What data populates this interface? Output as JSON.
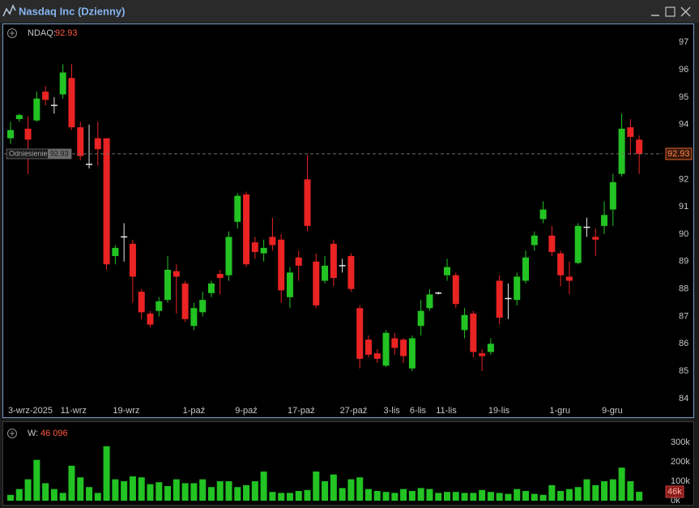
{
  "header": {
    "title": "Nasdaq Inc (Dzienny)"
  },
  "chart_data": [
    {
      "type": "candlestick",
      "legend_name": "NDAQ:",
      "categories": [
        "3-wrz-2025",
        null,
        null,
        null,
        null,
        null,
        "11-wrz",
        null,
        null,
        null,
        null,
        null,
        "19-wrz",
        null,
        null,
        null,
        null,
        null,
        null,
        null,
        "1-paź",
        null,
        null,
        null,
        null,
        null,
        "9-paź",
        null,
        null,
        null,
        null,
        null,
        "17-paź",
        null,
        null,
        null,
        null,
        null,
        "27-paź",
        null,
        null,
        null,
        null,
        "3-lis",
        null,
        null,
        "6-lis",
        null,
        null,
        "11-lis",
        null,
        null,
        null,
        null,
        null,
        "19-lis",
        null,
        null,
        null,
        null,
        null,
        null,
        "1-gru",
        null,
        null,
        null,
        null,
        null,
        "9-gru",
        null,
        null,
        null,
        null
      ],
      "open": [
        93.5,
        94.2,
        93.85,
        94.15,
        95.2,
        94.7,
        95.1,
        95.7,
        93.9,
        92.55,
        93.5,
        93.5,
        89.2,
        89.9,
        89.65,
        87.9,
        87.1,
        87.2,
        87.6,
        88.65,
        88.2,
        86.65,
        87.15,
        87.85,
        88.55,
        88.5,
        90.45,
        91.45,
        89.7,
        89.3,
        89.9,
        89.8,
        87.7,
        89.15,
        92.0,
        89.0,
        88.3,
        89.65,
        88.85,
        89.2,
        87.3,
        86.15,
        85.65,
        85.2,
        86.2,
        86.15,
        85.1,
        86.65,
        87.3,
        87.85,
        88.5,
        88.5,
        86.5,
        87.1,
        85.65,
        85.7,
        88.3,
        87.65,
        87.6,
        88.3,
        89.6,
        90.55,
        89.95,
        89.3,
        88.45,
        88.95,
        90.25,
        89.9,
        90.3,
        90.9,
        92.2,
        93.9,
        93.45
      ],
      "high": [
        94.1,
        94.4,
        94.3,
        95.2,
        95.4,
        95.0,
        96.2,
        96.2,
        94.1,
        94.0,
        94.1,
        93.5,
        89.6,
        90.4,
        89.8,
        88.0,
        87.2,
        87.7,
        89.2,
        88.9,
        88.3,
        87.5,
        87.9,
        88.3,
        88.7,
        90.1,
        91.5,
        91.55,
        89.9,
        89.8,
        90.6,
        90.0,
        88.8,
        89.4,
        92.9,
        89.3,
        89.2,
        89.8,
        89.1,
        89.3,
        87.4,
        86.3,
        85.8,
        86.5,
        86.4,
        86.2,
        86.3,
        87.6,
        88.0,
        87.9,
        89.1,
        88.6,
        87.3,
        87.2,
        85.8,
        86.2,
        88.5,
        88.2,
        88.6,
        89.4,
        90.1,
        91.2,
        90.3,
        89.4,
        89.0,
        90.4,
        90.6,
        90.2,
        91.2,
        92.2,
        94.4,
        94.2,
        93.6
      ],
      "low": [
        93.3,
        94.1,
        92.2,
        94.1,
        94.7,
        94.4,
        94.95,
        93.8,
        92.7,
        92.4,
        92.5,
        88.7,
        88.9,
        89.0,
        87.5,
        86.9,
        86.6,
        87.0,
        87.5,
        87.1,
        86.8,
        86.5,
        87.0,
        87.7,
        87.8,
        88.3,
        90.2,
        88.8,
        89.1,
        89.0,
        89.4,
        87.5,
        87.3,
        88.3,
        90.1,
        87.3,
        88.2,
        88.1,
        88.6,
        87.9,
        85.1,
        85.5,
        85.3,
        85.15,
        85.6,
        85.3,
        85.0,
        86.3,
        87.2,
        87.8,
        88.3,
        87.3,
        86.2,
        85.5,
        85.0,
        85.6,
        86.7,
        86.9,
        87.4,
        88.2,
        89.4,
        90.4,
        89.2,
        88.1,
        87.8,
        88.9,
        89.9,
        89.2,
        90.0,
        90.3,
        92.1,
        92.9,
        92.2
      ],
      "close": [
        93.8,
        94.35,
        93.45,
        94.95,
        94.9,
        94.7,
        95.9,
        93.9,
        92.85,
        92.55,
        93.1,
        88.9,
        89.5,
        89.9,
        88.45,
        87.15,
        86.7,
        87.55,
        88.7,
        88.45,
        86.9,
        87.3,
        87.6,
        88.2,
        88.4,
        89.9,
        91.4,
        88.9,
        89.35,
        89.5,
        89.6,
        87.95,
        88.6,
        88.85,
        90.3,
        87.4,
        88.85,
        88.4,
        88.85,
        88.0,
        85.45,
        85.6,
        85.45,
        86.4,
        85.85,
        85.55,
        86.2,
        87.2,
        87.8,
        87.85,
        88.8,
        87.45,
        87.05,
        85.7,
        85.55,
        86.0,
        86.95,
        87.65,
        88.45,
        89.15,
        89.95,
        90.9,
        89.35,
        88.5,
        88.3,
        90.3,
        90.25,
        89.8,
        90.7,
        91.9,
        93.85,
        93.55,
        92.93
      ],
      "up_color": "#22c322",
      "down_color": "#ea2323",
      "flat_color": "#e8e8e8",
      "reference": {
        "label": "Odniesienie",
        "value": 92.93
      },
      "ylim": [
        83.85,
        97.6
      ],
      "yticks": [
        84,
        85,
        86,
        87,
        88,
        89,
        90,
        91,
        92,
        93,
        94,
        95,
        96,
        97
      ],
      "grid": true
    },
    {
      "type": "bar",
      "legend_name": "W:",
      "legend_value_label": "46 096",
      "last_tag": "46k",
      "values": [
        30000,
        60000,
        110000,
        210000,
        90000,
        60000,
        40000,
        180000,
        120000,
        70000,
        40000,
        280000,
        110000,
        100000,
        125000,
        120000,
        85000,
        95000,
        75000,
        110000,
        90000,
        90000,
        110000,
        70000,
        100000,
        100000,
        70000,
        80000,
        100000,
        150000,
        45000,
        40000,
        40000,
        50000,
        55000,
        150000,
        100000,
        135000,
        65000,
        110000,
        120000,
        60000,
        50000,
        45000,
        40000,
        60000,
        50000,
        65000,
        60000,
        40000,
        45000,
        45000,
        40000,
        40000,
        55000,
        45000,
        40000,
        35000,
        60000,
        50000,
        35000,
        30000,
        80000,
        50000,
        60000,
        70000,
        110000,
        80000,
        100000,
        110000,
        170000,
        100000,
        46096
      ],
      "color": "#22c322",
      "ylim": [
        0,
        375000
      ],
      "yticks": [
        {
          "value": 0,
          "label": "0k"
        },
        {
          "value": 100000,
          "label": "100k"
        },
        {
          "value": 200000,
          "label": "200k"
        },
        {
          "value": 300000,
          "label": "300k"
        }
      ],
      "grid": true
    }
  ]
}
